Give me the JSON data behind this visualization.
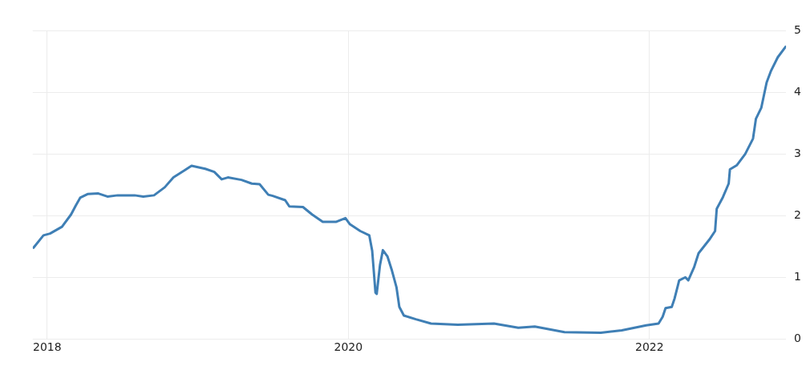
{
  "chart_data": {
    "type": "line",
    "x": [
      "2017-11-29",
      "2017-12-23",
      "2018-01-08",
      "2018-02-06",
      "2018-02-28",
      "2018-03-11",
      "2018-03-22",
      "2018-04-09",
      "2018-05-05",
      "2018-05-27",
      "2018-06-21",
      "2018-08-01",
      "2018-08-22",
      "2018-09-17",
      "2018-10-13",
      "2018-11-03",
      "2018-11-29",
      "2018-12-17",
      "2019-01-19",
      "2019-02-10",
      "2019-02-28",
      "2019-03-15",
      "2019-04-17",
      "2019-05-12",
      "2019-05-31",
      "2019-06-21",
      "2019-07-02",
      "2019-08-01",
      "2019-08-11",
      "2019-09-13",
      "2019-10-05",
      "2019-10-31",
      "2019-12-03",
      "2019-12-25",
      "2020-01-05",
      "2020-01-30",
      "2020-02-21",
      "2020-02-28",
      "2020-03-07",
      "2020-03-10",
      "2020-03-18",
      "2020-03-25",
      "2020-04-05",
      "2020-04-16",
      "2020-04-27",
      "2020-05-04",
      "2020-05-15",
      "2020-06-13",
      "2020-07-20",
      "2020-09-23",
      "2020-12-20",
      "2021-02-17",
      "2021-03-29",
      "2021-06-09",
      "2021-09-05",
      "2021-10-26",
      "2021-12-24",
      "2022-01-23",
      "2022-02-02",
      "2022-02-09",
      "2022-02-24",
      "2022-03-03",
      "2022-03-14",
      "2022-03-29",
      "2022-04-05",
      "2022-04-19",
      "2022-04-30",
      "2022-05-26",
      "2022-06-09",
      "2022-06-13",
      "2022-06-28",
      "2022-07-12",
      "2022-07-15",
      "2022-08-01",
      "2022-08-21",
      "2022-09-09",
      "2022-09-16",
      "2022-09-29",
      "2022-10-12",
      "2022-10-22",
      "2022-11-08",
      "2022-11-27"
    ],
    "series": [
      {
        "color": "#3f7fb5",
        "values": [
          1.48,
          1.68,
          1.71,
          1.82,
          2.02,
          2.16,
          2.29,
          2.35,
          2.36,
          2.31,
          2.33,
          2.33,
          2.31,
          2.33,
          2.46,
          2.62,
          2.73,
          2.81,
          2.76,
          2.71,
          2.59,
          2.62,
          2.58,
          2.52,
          2.51,
          2.34,
          2.32,
          2.25,
          2.15,
          2.14,
          2.02,
          1.9,
          1.9,
          1.96,
          1.86,
          1.75,
          1.68,
          1.43,
          0.75,
          0.73,
          1.2,
          1.44,
          1.34,
          1.11,
          0.84,
          0.52,
          0.38,
          0.32,
          0.25,
          0.23,
          0.25,
          0.18,
          0.2,
          0.11,
          0.1,
          0.14,
          0.22,
          0.25,
          0.36,
          0.5,
          0.52,
          0.66,
          0.95,
          1.0,
          0.95,
          1.16,
          1.39,
          1.61,
          1.75,
          2.11,
          2.3,
          2.52,
          2.75,
          2.82,
          3.0,
          3.25,
          3.57,
          3.75,
          4.16,
          4.34,
          4.57,
          4.74
        ]
      }
    ],
    "xlim": [
      "2017-11-27",
      "2022-11-28"
    ],
    "xticks": [
      {
        "value": "2018-01-01",
        "label": "2018"
      },
      {
        "value": "2020-01-01",
        "label": "2020"
      },
      {
        "value": "2022-01-01",
        "label": "2022"
      }
    ],
    "ylim": [
      0,
      5
    ],
    "yticks": [
      0,
      1,
      2,
      3,
      4,
      5
    ],
    "grid": true,
    "marker": "none",
    "line_style": "solid"
  }
}
